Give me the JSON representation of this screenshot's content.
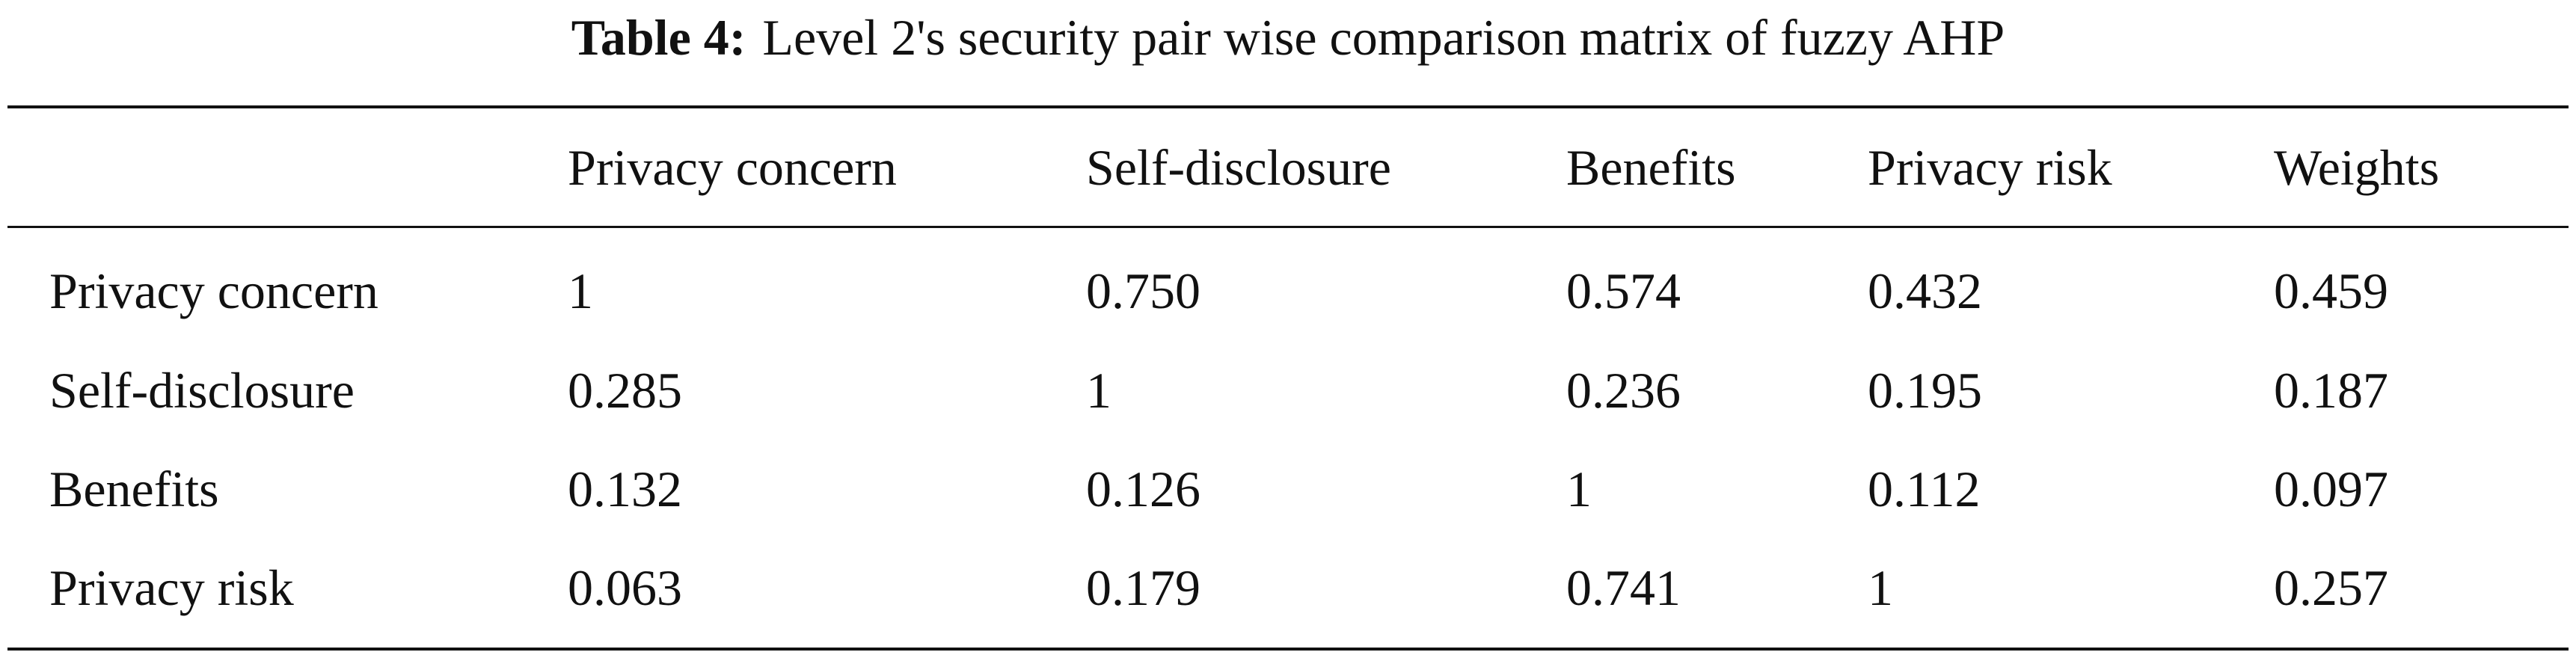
{
  "title": {
    "label": "Table 4:",
    "text": "Level 2's security pair wise comparison matrix of fuzzy AHP"
  },
  "table": {
    "header": [
      "",
      "Privacy concern",
      "Self-disclosure",
      "Benefits",
      "Privacy risk",
      "Weights"
    ],
    "rows": [
      [
        "Privacy concern",
        "1",
        "0.750",
        "0.574",
        "0.432",
        "0.459"
      ],
      [
        "Self-disclosure",
        "0.285",
        "1",
        "0.236",
        "0.195",
        "0.187"
      ],
      [
        "Benefits",
        "0.132",
        "0.126",
        "1",
        "0.112",
        "0.097"
      ],
      [
        "Privacy risk",
        "0.063",
        "0.179",
        "0.741",
        "1",
        "0.257"
      ]
    ]
  }
}
